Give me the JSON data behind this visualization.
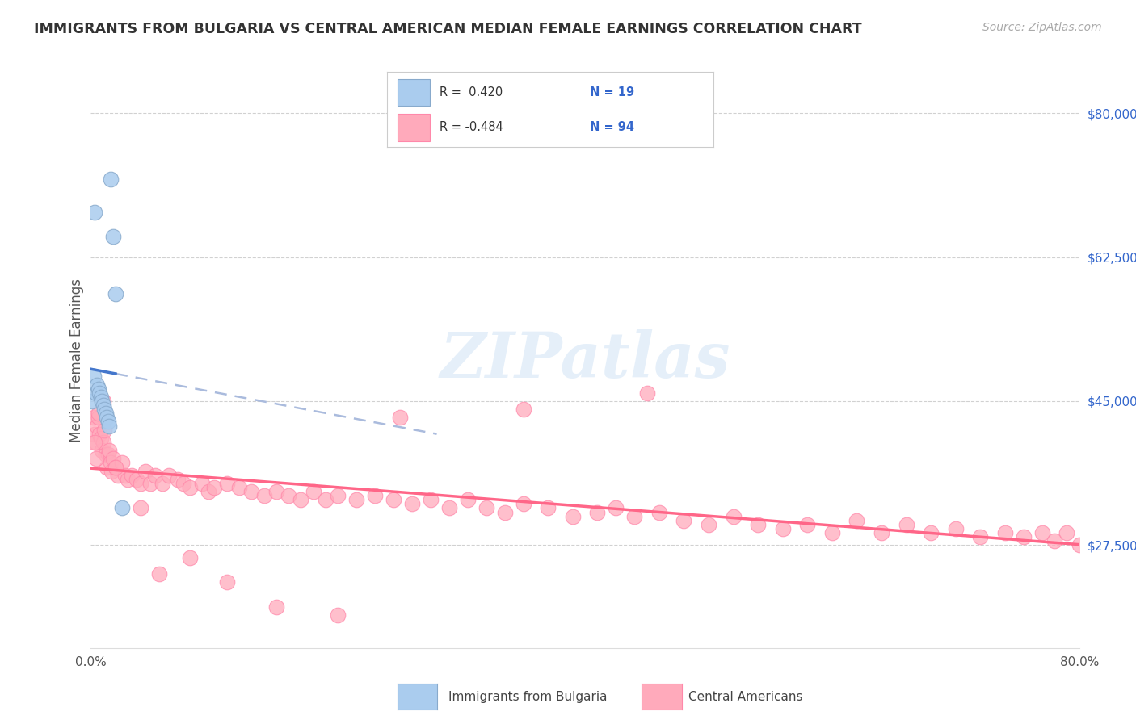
{
  "title": "IMMIGRANTS FROM BULGARIA VS CENTRAL AMERICAN MEDIAN FEMALE EARNINGS CORRELATION CHART",
  "source": "Source: ZipAtlas.com",
  "ylabel": "Median Female Earnings",
  "xlim": [
    0.0,
    0.8
  ],
  "ylim": [
    15000,
    85000
  ],
  "yticks": [
    27500,
    45000,
    62500,
    80000
  ],
  "ytick_labels": [
    "$27,500",
    "$45,000",
    "$62,500",
    "$80,000"
  ],
  "bg_color": "#ffffff",
  "grid_color": "#cccccc",
  "blue_scatter_color": "#aaccee",
  "blue_scatter_edge": "#88aacc",
  "pink_scatter_color": "#ffaabb",
  "pink_scatter_edge": "#ff88aa",
  "blue_line_color": "#4477cc",
  "blue_dash_color": "#aabbdd",
  "pink_line_color": "#ff6688",
  "legend_text_color": "#333333",
  "legend_N_color": "#3366cc",
  "watermark_color": "#aaccee",
  "ytick_color": "#3366cc",
  "source_color": "#aaaaaa",
  "title_color": "#333333",
  "bulgaria_x": [
    0.001,
    0.002,
    0.003,
    0.004,
    0.005,
    0.006,
    0.007,
    0.008,
    0.009,
    0.01,
    0.011,
    0.012,
    0.013,
    0.014,
    0.015,
    0.016,
    0.018,
    0.02,
    0.025
  ],
  "bulgaria_y": [
    45000,
    48000,
    68000,
    46000,
    47000,
    46500,
    46000,
    45500,
    45000,
    44500,
    44000,
    43500,
    43000,
    42500,
    42000,
    72000,
    65000,
    58000,
    32000
  ],
  "ca_x": [
    0.002,
    0.003,
    0.004,
    0.005,
    0.006,
    0.007,
    0.008,
    0.009,
    0.01,
    0.011,
    0.012,
    0.013,
    0.014,
    0.015,
    0.016,
    0.017,
    0.018,
    0.02,
    0.022,
    0.025,
    0.028,
    0.03,
    0.033,
    0.037,
    0.04,
    0.044,
    0.048,
    0.052,
    0.058,
    0.063,
    0.07,
    0.075,
    0.08,
    0.09,
    0.095,
    0.1,
    0.11,
    0.12,
    0.13,
    0.14,
    0.15,
    0.16,
    0.17,
    0.18,
    0.19,
    0.2,
    0.215,
    0.23,
    0.245,
    0.26,
    0.275,
    0.29,
    0.305,
    0.32,
    0.335,
    0.35,
    0.37,
    0.39,
    0.41,
    0.425,
    0.44,
    0.46,
    0.48,
    0.5,
    0.52,
    0.54,
    0.56,
    0.58,
    0.6,
    0.62,
    0.64,
    0.66,
    0.68,
    0.7,
    0.72,
    0.74,
    0.755,
    0.77,
    0.78,
    0.79,
    0.8,
    0.45,
    0.35,
    0.25,
    0.15,
    0.08,
    0.04,
    0.02,
    0.01,
    0.006,
    0.003,
    0.004,
    0.055,
    0.11,
    0.2
  ],
  "ca_y": [
    43000,
    41000,
    40000,
    42000,
    43000,
    41000,
    40500,
    39000,
    40000,
    41500,
    38500,
    37000,
    38500,
    39000,
    37500,
    36500,
    38000,
    37000,
    36000,
    37500,
    36000,
    35500,
    36000,
    35500,
    35000,
    36500,
    35000,
    36000,
    35000,
    36000,
    35500,
    35000,
    34500,
    35000,
    34000,
    34500,
    35000,
    34500,
    34000,
    33500,
    34000,
    33500,
    33000,
    34000,
    33000,
    33500,
    33000,
    33500,
    33000,
    32500,
    33000,
    32000,
    33000,
    32000,
    31500,
    32500,
    32000,
    31000,
    31500,
    32000,
    31000,
    31500,
    30500,
    30000,
    31000,
    30000,
    29500,
    30000,
    29000,
    30500,
    29000,
    30000,
    29000,
    29500,
    28500,
    29000,
    28500,
    29000,
    28000,
    29000,
    27500,
    46000,
    44000,
    43000,
    20000,
    26000,
    32000,
    37000,
    45000,
    43500,
    40000,
    38000,
    24000,
    23000,
    19000
  ]
}
